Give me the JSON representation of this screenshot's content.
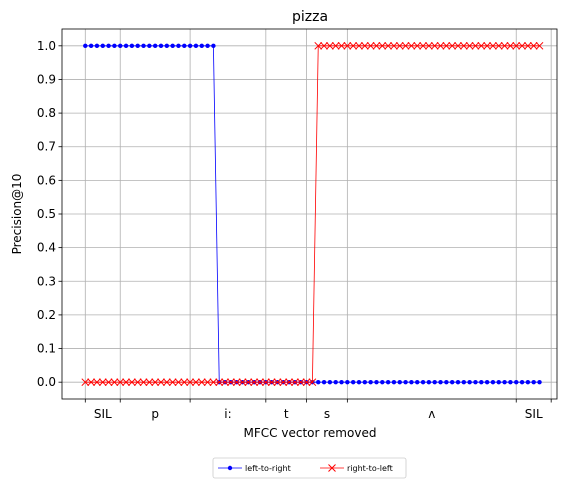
{
  "chart_data": {
    "type": "line",
    "title": "pizza",
    "xlabel": "MFCC vector removed",
    "ylabel": "Precision@10",
    "xlim": [
      -4,
      81
    ],
    "ylim": [
      -0.05,
      1.05
    ],
    "yticks": [
      0.0,
      0.1,
      0.2,
      0.3,
      0.4,
      0.5,
      0.6,
      0.7,
      0.8,
      0.9,
      1.0
    ],
    "ytick_labels": [
      "0.0",
      "0.1",
      "0.2",
      "0.3",
      "0.4",
      "0.5",
      "0.6",
      "0.7",
      "0.8",
      "0.9",
      "1.0"
    ],
    "phone_boundaries": [
      0,
      6,
      18,
      31,
      38,
      45,
      74,
      80
    ],
    "phones": [
      {
        "label": "SIL",
        "x": 3
      },
      {
        "label": "p",
        "x": 12
      },
      {
        "label": "i:",
        "x": 24.5
      },
      {
        "label": "t",
        "x": 34.5
      },
      {
        "label": "s",
        "x": 41.5
      },
      {
        "label": "ʌ",
        "x": 59.5
      },
      {
        "label": "SIL",
        "x": 77
      }
    ],
    "grid": true,
    "legend": {
      "placement": "below"
    },
    "series": [
      {
        "name": "left-to-right",
        "color": "#0000ff",
        "marker": "dot",
        "x": [
          0,
          1,
          2,
          3,
          4,
          5,
          6,
          7,
          8,
          9,
          10,
          11,
          12,
          13,
          14,
          15,
          16,
          17,
          18,
          19,
          20,
          21,
          22,
          23,
          24,
          25,
          26,
          27,
          28,
          29,
          30,
          31,
          32,
          33,
          34,
          35,
          36,
          37,
          38,
          39,
          40,
          41,
          42,
          43,
          44,
          45,
          46,
          47,
          48,
          49,
          50,
          51,
          52,
          53,
          54,
          55,
          56,
          57,
          58,
          59,
          60,
          61,
          62,
          63,
          64,
          65,
          66,
          67,
          68,
          69,
          70,
          71,
          72,
          73,
          74,
          75,
          76,
          77,
          78
        ],
        "y": [
          1,
          1,
          1,
          1,
          1,
          1,
          1,
          1,
          1,
          1,
          1,
          1,
          1,
          1,
          1,
          1,
          1,
          1,
          1,
          1,
          1,
          1,
          1,
          0,
          0,
          0,
          0,
          0,
          0,
          0,
          0,
          0,
          0,
          0,
          0,
          0,
          0,
          0,
          0,
          0,
          0,
          0,
          0,
          0,
          0,
          0,
          0,
          0,
          0,
          0,
          0,
          0,
          0,
          0,
          0,
          0,
          0,
          0,
          0,
          0,
          0,
          0,
          0,
          0,
          0,
          0,
          0,
          0,
          0,
          0,
          0,
          0,
          0,
          0,
          0,
          0,
          0,
          0,
          0
        ]
      },
      {
        "name": "right-to-left",
        "color": "#ff0000",
        "marker": "x",
        "x": [
          0,
          1,
          2,
          3,
          4,
          5,
          6,
          7,
          8,
          9,
          10,
          11,
          12,
          13,
          14,
          15,
          16,
          17,
          18,
          19,
          20,
          21,
          22,
          23,
          24,
          25,
          26,
          27,
          28,
          29,
          30,
          31,
          32,
          33,
          34,
          35,
          36,
          37,
          38,
          39,
          40,
          41,
          42,
          43,
          44,
          45,
          46,
          47,
          48,
          49,
          50,
          51,
          52,
          53,
          54,
          55,
          56,
          57,
          58,
          59,
          60,
          61,
          62,
          63,
          64,
          65,
          66,
          67,
          68,
          69,
          70,
          71,
          72,
          73,
          74,
          75,
          76,
          77,
          78
        ],
        "y": [
          0,
          0,
          0,
          0,
          0,
          0,
          0,
          0,
          0,
          0,
          0,
          0,
          0,
          0,
          0,
          0,
          0,
          0,
          0,
          0,
          0,
          0,
          0,
          0,
          0,
          0,
          0,
          0,
          0,
          0,
          0,
          0,
          0,
          0,
          0,
          0,
          0,
          0,
          0,
          0,
          1,
          1,
          1,
          1,
          1,
          1,
          1,
          1,
          1,
          1,
          1,
          1,
          1,
          1,
          1,
          1,
          1,
          1,
          1,
          1,
          1,
          1,
          1,
          1,
          1,
          1,
          1,
          1,
          1,
          1,
          1,
          1,
          1,
          1,
          1,
          1,
          1,
          1,
          1
        ]
      }
    ]
  }
}
